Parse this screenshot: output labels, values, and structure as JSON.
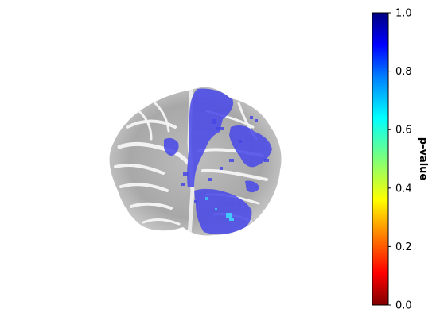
{
  "colorbar": {
    "label": "p-value",
    "ticks": [
      "0.0",
      "0.2",
      "0.4",
      "0.6",
      "0.8",
      "1.0"
    ],
    "tick_values": [
      0.0,
      0.2,
      0.4,
      0.6,
      0.8,
      1.0
    ],
    "range": [
      0.0,
      1.0
    ],
    "colormap": "jet_r",
    "stops": [
      "#800000",
      "#ff0000",
      "#ff8c00",
      "#ffff00",
      "#7dff7a",
      "#00ffff",
      "#0080ff",
      "#0000ff",
      "#000080"
    ]
  },
  "image": {
    "description_icon": "brain-axial-slice-icon",
    "background_gray": "#9a9a9a",
    "overlay_blue": "#4646e6",
    "overlay_cyan": "#40c8ff"
  }
}
